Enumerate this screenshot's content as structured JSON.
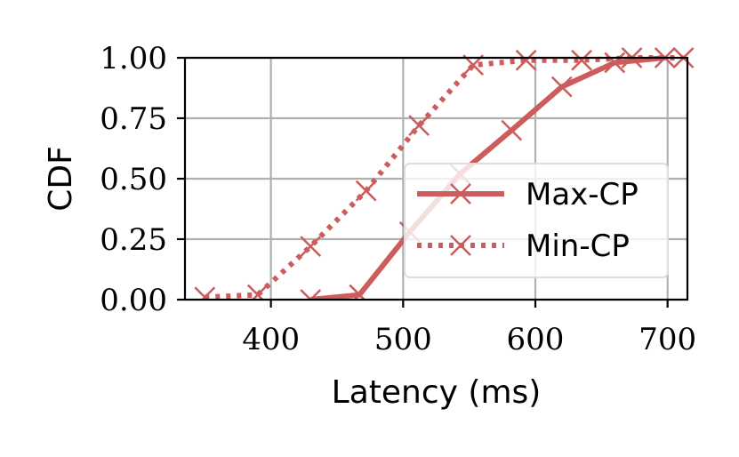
{
  "chart_data": {
    "type": "line",
    "xlabel": "Latency (ms)",
    "ylabel": "CDF",
    "xlim": [
      335,
      715
    ],
    "ylim": [
      0,
      1
    ],
    "x_ticks": [
      400,
      500,
      600,
      700
    ],
    "x_tick_labels": [
      "400",
      "500",
      "600",
      "700"
    ],
    "y_ticks": [
      0,
      0.25,
      0.5,
      0.75,
      1
    ],
    "y_tick_labels": [
      "0.00",
      "0.25",
      "0.50",
      "0.75",
      "1.00"
    ],
    "grid": true,
    "legend_position": "center-right",
    "series": [
      {
        "name": "Max-CP",
        "color": "#cd5c5c",
        "line_style": "solid",
        "marker": "x",
        "x": [
          430,
          467,
          505,
          543,
          582,
          620,
          660,
          698
        ],
        "y": [
          0.0,
          0.02,
          0.28,
          0.52,
          0.7,
          0.88,
          0.98,
          1.0
        ]
      },
      {
        "name": "Min-CP",
        "color": "#cd5c5c",
        "line_style": "dotted",
        "marker": "x",
        "x": [
          350,
          390,
          430,
          472,
          512,
          553,
          593,
          635,
          673,
          712
        ],
        "y": [
          0.01,
          0.02,
          0.22,
          0.45,
          0.72,
          0.97,
          0.99,
          0.99,
          1.0,
          1.0
        ]
      }
    ]
  }
}
